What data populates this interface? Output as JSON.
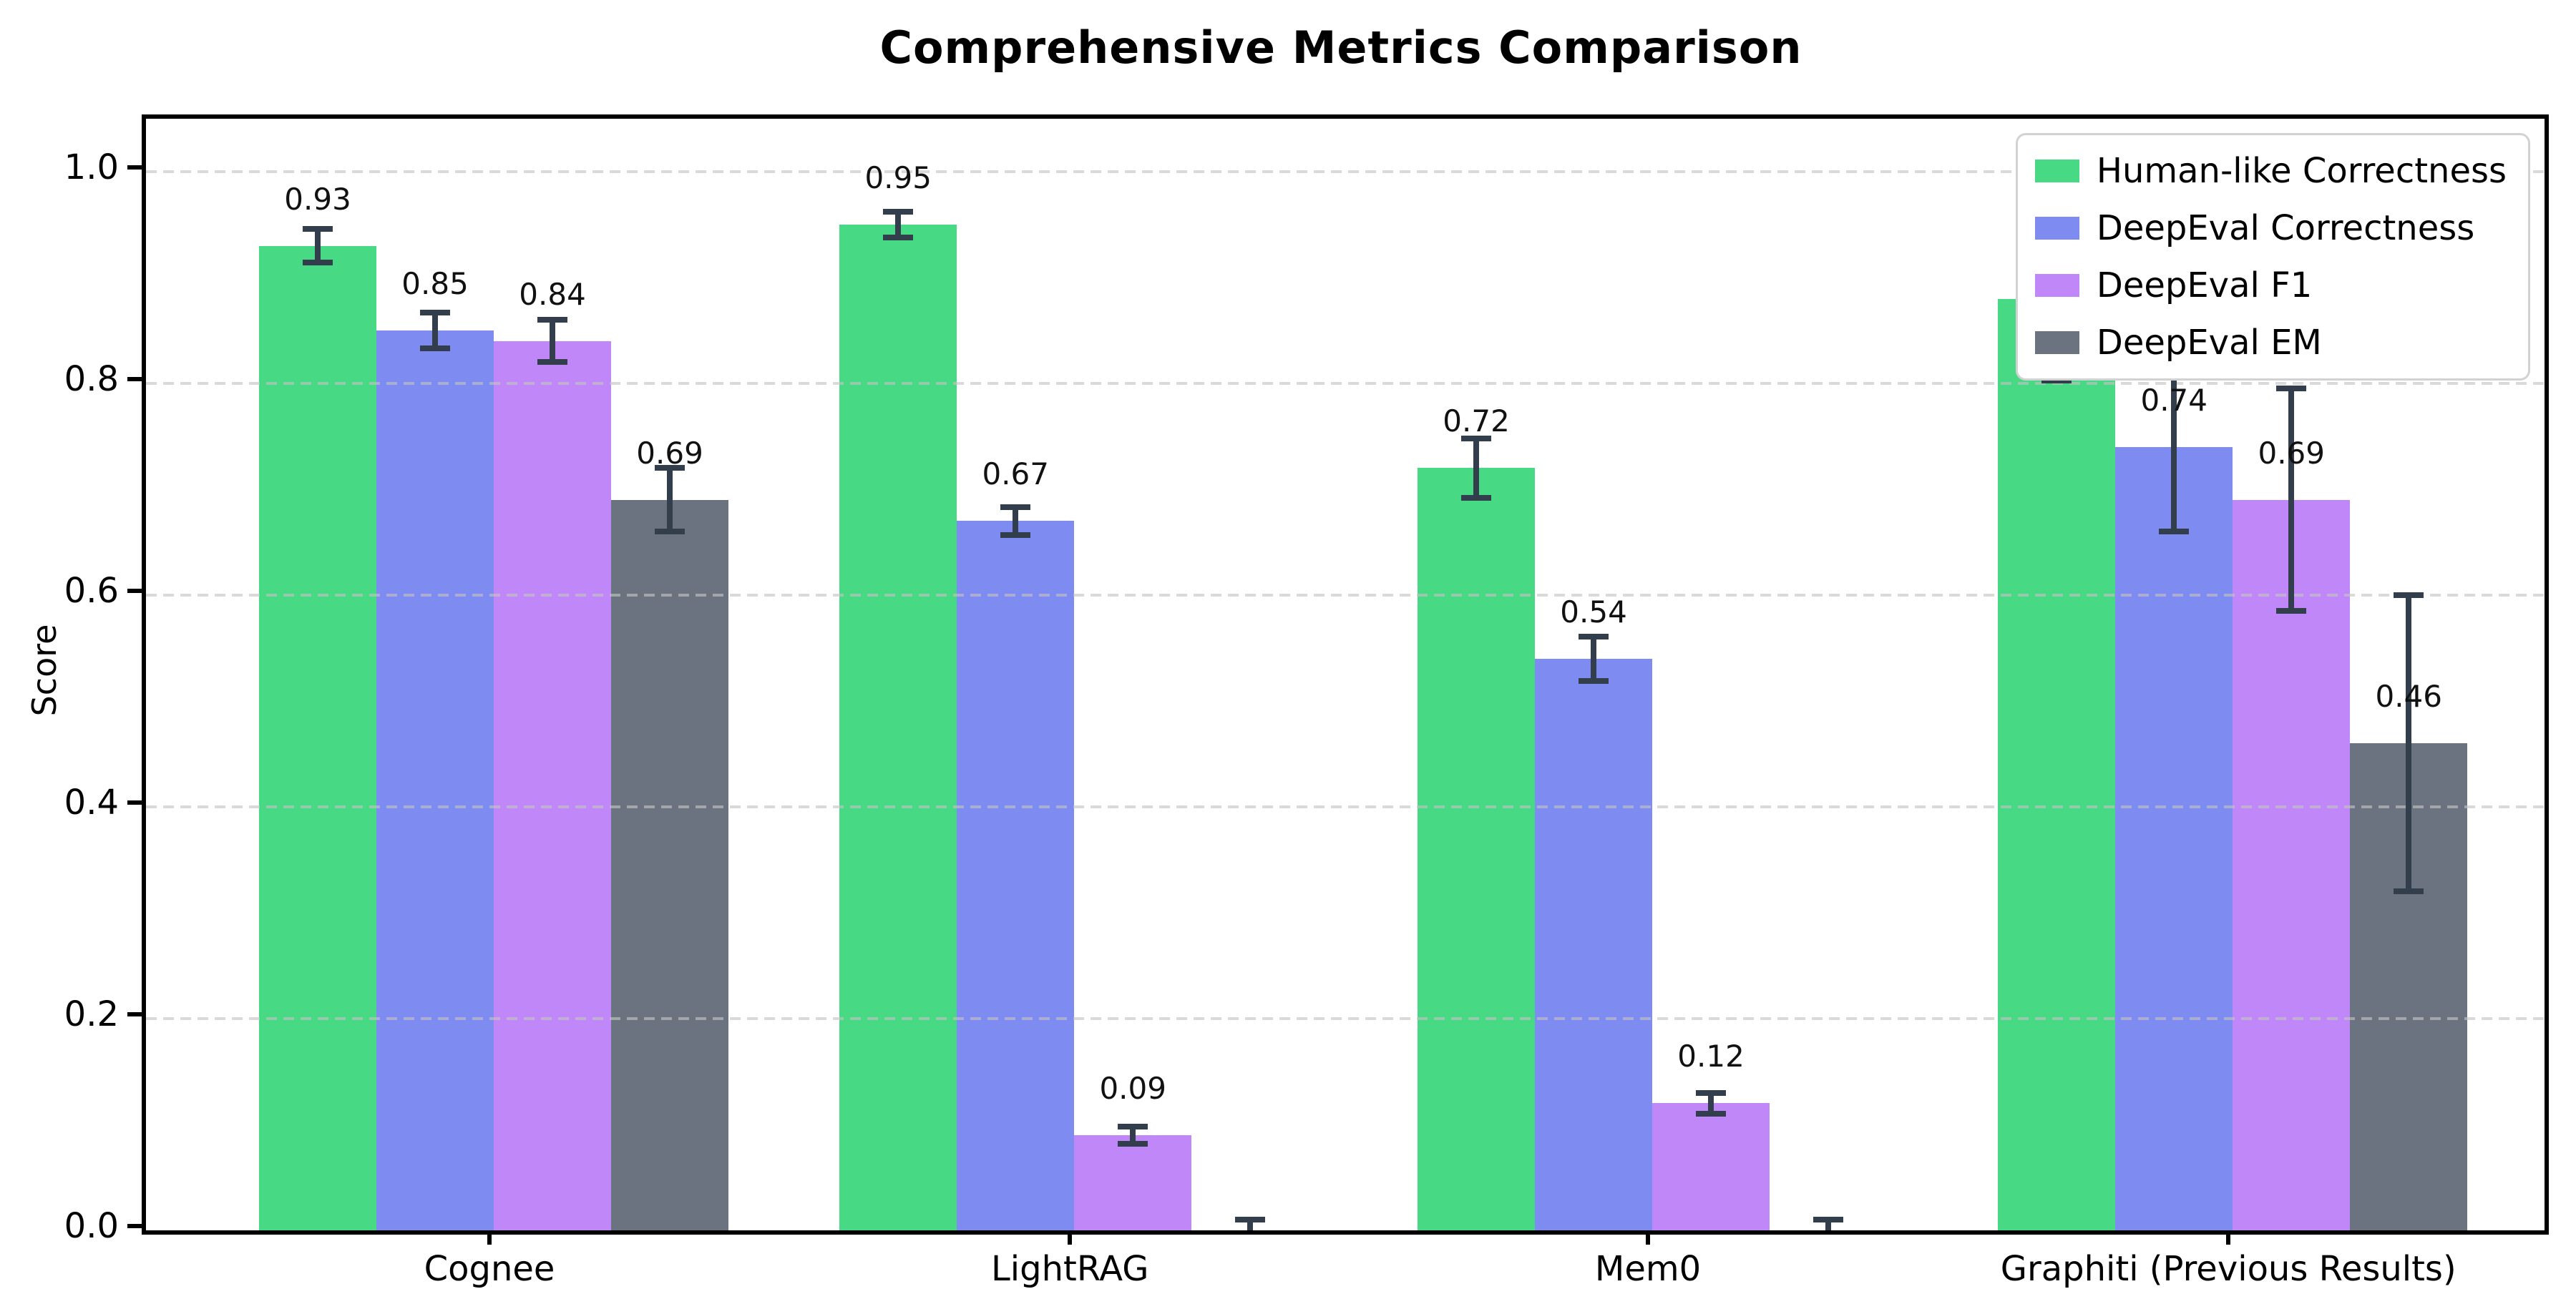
{
  "chart_data": {
    "type": "bar",
    "title": "Comprehensive Metrics Comparison",
    "xlabel": "",
    "ylabel": "Score",
    "ylim": [
      0,
      1.05
    ],
    "yticks": [
      "0.0",
      "0.2",
      "0.4",
      "0.6",
      "0.8",
      "1.0"
    ],
    "grid": "horizontal-dashed",
    "legend_position": "upper-right",
    "categories": [
      "Cognee",
      "LightRAG",
      "Mem0",
      "Graphiti (Previous Results)"
    ],
    "series": [
      {
        "name": "Human-like Correctness",
        "color": "#47d983",
        "values": [
          0.93,
          0.95,
          0.72,
          0.88
        ],
        "errors": [
          0.016,
          0.012,
          0.028,
          0.077
        ],
        "labels": [
          "0.93",
          "0.95",
          "0.72",
          "0.88"
        ]
      },
      {
        "name": "DeepEval Correctness",
        "color": "#7e8bf0",
        "values": [
          0.85,
          0.67,
          0.54,
          0.74
        ],
        "errors": [
          0.017,
          0.013,
          0.021,
          0.08
        ],
        "labels": [
          "0.85",
          "0.67",
          "0.54",
          "0.74"
        ]
      },
      {
        "name": "DeepEval F1",
        "color": "#bf87f7",
        "values": [
          0.84,
          0.09,
          0.12,
          0.69
        ],
        "errors": [
          0.02,
          0.008,
          0.01,
          0.105
        ],
        "labels": [
          "0.84",
          "0.09",
          "0.12",
          "0.69"
        ]
      },
      {
        "name": "DeepEval EM",
        "color": "#6b7280",
        "values": [
          0.69,
          0.0,
          0.0,
          0.46
        ],
        "errors": [
          0.03,
          0.01,
          0.01,
          0.14
        ],
        "labels": [
          "0.69",
          "",
          "",
          "0.46"
        ]
      }
    ],
    "style": {
      "error_bar_color": "#323e4b",
      "grid_color": "#c4c4c4",
      "spine_color": "#000000",
      "background": "#ffffff",
      "legend_border_color": "#d2d2d2"
    }
  }
}
